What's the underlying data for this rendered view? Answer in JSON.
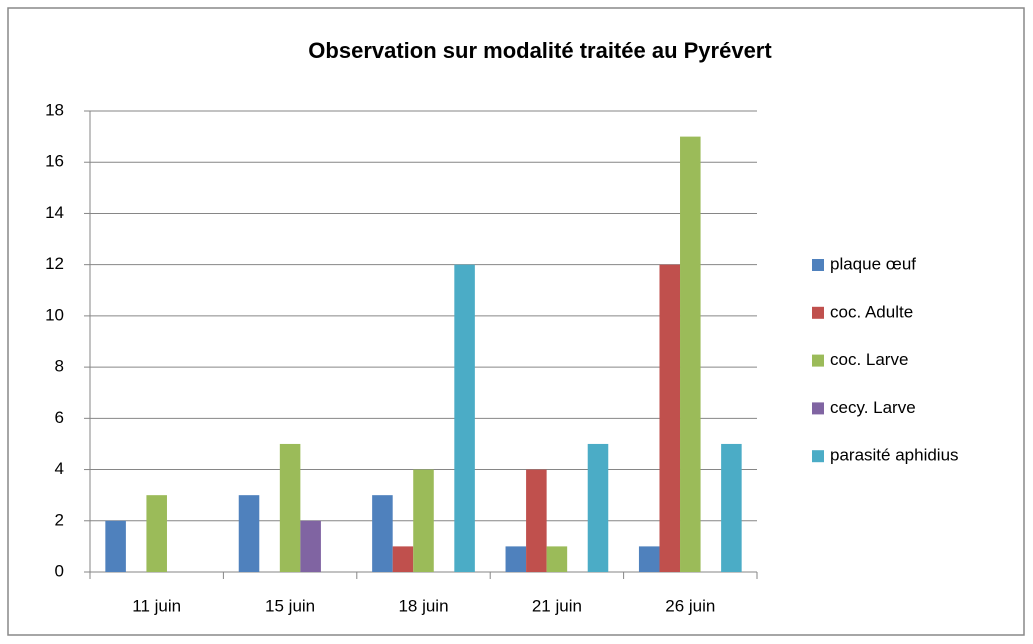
{
  "chart_data": {
    "type": "bar",
    "title": "Observation sur modalité traitée au Pyrévert",
    "categories": [
      "11 juin",
      "15 juin",
      "18 juin",
      "21 juin",
      "26 juin"
    ],
    "series": [
      {
        "name": "plaque œuf",
        "color": "#4f81bd",
        "values": [
          2,
          3,
          3,
          1,
          1
        ]
      },
      {
        "name": "coc. Adulte",
        "color": "#c0504d",
        "values": [
          0,
          0,
          1,
          4,
          12
        ]
      },
      {
        "name": "coc. Larve",
        "color": "#9bbb59",
        "values": [
          3,
          5,
          4,
          1,
          17
        ]
      },
      {
        "name": "cecy. Larve",
        "color": "#8064a2",
        "values": [
          0,
          2,
          0,
          0,
          0
        ]
      },
      {
        "name": "parasité aphidius",
        "color": "#4bacc6",
        "values": [
          0,
          0,
          12,
          5,
          5
        ]
      }
    ],
    "ylim": [
      0,
      18
    ],
    "yticks": [
      0,
      2,
      4,
      6,
      8,
      10,
      12,
      14,
      16,
      18
    ],
    "grid": true,
    "legend": "right"
  }
}
